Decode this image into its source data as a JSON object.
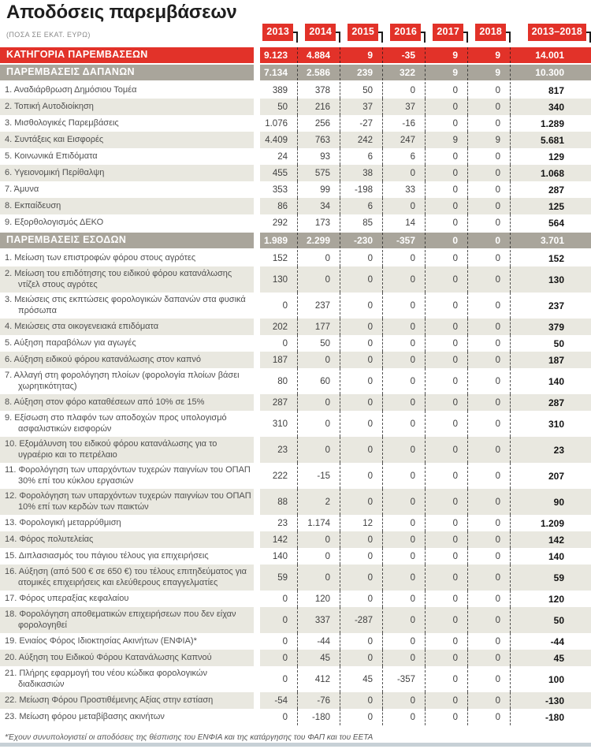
{
  "chart_data": {
    "type": "table",
    "title": "Αποδόσεις παρεμβάσεων",
    "subtitle": "(ΠΟΣΑ ΣΕ ΕΚΑΤ. ΕΥΡΩ)",
    "columns": [
      "2013",
      "2014",
      "2015",
      "2016",
      "2017",
      "2018",
      "2013–2018"
    ],
    "rows": [
      {
        "type": "category",
        "label": "ΚΑΤΗΓΟΡΙΑ ΠΑΡΕΜΒΑΣΕΩΝ",
        "values": [
          "9.123",
          "4.884",
          "9",
          "-35",
          "9",
          "9",
          "14.001"
        ]
      },
      {
        "type": "section",
        "label": "ΠΑΡΕΜΒΑΣΕΙΣ ΔΑΠΑΝΩΝ",
        "values": [
          "7.134",
          "2.586",
          "239",
          "322",
          "9",
          "9",
          "10.300"
        ]
      },
      {
        "type": "item",
        "label": "1. Αναδιάρθρωση Δημόσιου Τομέα",
        "values": [
          "389",
          "378",
          "50",
          "0",
          "0",
          "0",
          "817"
        ]
      },
      {
        "type": "item",
        "label": "2. Τοπική Αυτοδιοίκηση",
        "values": [
          "50",
          "216",
          "37",
          "37",
          "0",
          "0",
          "340"
        ]
      },
      {
        "type": "item",
        "label": "3. Μισθολογικές Παρεμβάσεις",
        "values": [
          "1.076",
          "256",
          "-27",
          "-16",
          "0",
          "0",
          "1.289"
        ]
      },
      {
        "type": "item",
        "label": "4. Συντάξεις και Εισφορές",
        "values": [
          "4.409",
          "763",
          "242",
          "247",
          "9",
          "9",
          "5.681"
        ]
      },
      {
        "type": "item",
        "label": "5. Κοινωνικά Επιδόματα",
        "values": [
          "24",
          "93",
          "6",
          "6",
          "0",
          "0",
          "129"
        ]
      },
      {
        "type": "item",
        "label": "6. Υγειονομική Περίθαλψη",
        "values": [
          "455",
          "575",
          "38",
          "0",
          "0",
          "0",
          "1.068"
        ]
      },
      {
        "type": "item",
        "label": "7. Άμυνα",
        "values": [
          "353",
          "99",
          "-198",
          "33",
          "0",
          "0",
          "287"
        ]
      },
      {
        "type": "item",
        "label": "8. Εκπαίδευση",
        "values": [
          "86",
          "34",
          "6",
          "0",
          "0",
          "0",
          "125"
        ]
      },
      {
        "type": "item",
        "label": "9. Εξορθολογισμός ΔΕΚΟ",
        "values": [
          "292",
          "173",
          "85",
          "14",
          "0",
          "0",
          "564"
        ]
      },
      {
        "type": "section",
        "label": "ΠΑΡΕΜΒΑΣΕΙΣ ΕΣΟΔΩΝ",
        "values": [
          "1.989",
          "2.299",
          "-230",
          "-357",
          "0",
          "0",
          "3.701"
        ]
      },
      {
        "type": "item",
        "label": "1. Μείωση των επιστροφών φόρου στους αγρότες",
        "values": [
          "152",
          "0",
          "0",
          "0",
          "0",
          "0",
          "152"
        ]
      },
      {
        "type": "item",
        "label": "2. Μείωση του επιδότησης του ειδικού φόρου κατανάλωσης ντίζελ στους αγρότες",
        "values": [
          "130",
          "0",
          "0",
          "0",
          "0",
          "0",
          "130"
        ]
      },
      {
        "type": "item",
        "label": "3. Μειώσεις στις εκπτώσεις φορολογικών δαπανών στα φυσικά πρόσωπα",
        "values": [
          "0",
          "237",
          "0",
          "0",
          "0",
          "0",
          "237"
        ]
      },
      {
        "type": "item",
        "label": "4. Μειώσεις στα οικογενειακά επιδόματα",
        "values": [
          "202",
          "177",
          "0",
          "0",
          "0",
          "0",
          "379"
        ]
      },
      {
        "type": "item",
        "label": "5. Αύξηση παραβόλων για αγωγές",
        "values": [
          "0",
          "50",
          "0",
          "0",
          "0",
          "0",
          "50"
        ]
      },
      {
        "type": "item",
        "label": "6. Αύξηση ειδικού φόρου κατανάλωσης στον καπνό",
        "values": [
          "187",
          "0",
          "0",
          "0",
          "0",
          "0",
          "187"
        ]
      },
      {
        "type": "item",
        "label": "7. Αλλαγή στη φορολόγηση πλοίων (φορολογία πλοίων βάσει χωρητικότητας)",
        "values": [
          "80",
          "60",
          "0",
          "0",
          "0",
          "0",
          "140"
        ]
      },
      {
        "type": "item",
        "label": "8. Αύξηση στον φόρο καταθέσεων από 10% σε 15%",
        "values": [
          "287",
          "0",
          "0",
          "0",
          "0",
          "0",
          "287"
        ]
      },
      {
        "type": "item",
        "label": "9. Εξίσωση στο πλαφόν των αποδοχών προς υπολογισμό ασφαλιστικών εισφορών",
        "values": [
          "310",
          "0",
          "0",
          "0",
          "0",
          "0",
          "310"
        ]
      },
      {
        "type": "item",
        "label": "10. Εξομάλυνση του ειδικού φόρου κατανάλωσης για το υγραέριο και το πετρέλαιο",
        "values": [
          "23",
          "0",
          "0",
          "0",
          "0",
          "0",
          "23"
        ]
      },
      {
        "type": "item",
        "label": "11. Φορολόγηση των υπαρχόντων τυχερών παιγνίων του ΟΠΑΠ 30% επί του κύκλου εργασιών",
        "values": [
          "222",
          "-15",
          "0",
          "0",
          "0",
          "0",
          "207"
        ]
      },
      {
        "type": "item",
        "label": "12. Φορολόγηση των υπαρχόντων τυχερών παιγνίων του ΟΠΑΠ 10% επί των κερδών των παικτών",
        "values": [
          "88",
          "2",
          "0",
          "0",
          "0",
          "0",
          "90"
        ]
      },
      {
        "type": "item",
        "label": "13. Φορολογική μεταρρύθμιση",
        "values": [
          "23",
          "1.174",
          "12",
          "0",
          "0",
          "0",
          "1.209"
        ]
      },
      {
        "type": "item",
        "label": "14. Φόρος πολυτελείας",
        "values": [
          "142",
          "0",
          "0",
          "0",
          "0",
          "0",
          "142"
        ]
      },
      {
        "type": "item",
        "label": "15. Διπλασιασμός του πάγιου τέλους για επιχειρήσεις",
        "values": [
          "140",
          "0",
          "0",
          "0",
          "0",
          "0",
          "140"
        ]
      },
      {
        "type": "item",
        "label": "16. Αύξηση (από 500 € σε 650 €) του τέλους επιτηδεύματος για ατομικές επιχειρήσεις και ελεύθερους επαγγελματίες",
        "values": [
          "59",
          "0",
          "0",
          "0",
          "0",
          "0",
          "59"
        ]
      },
      {
        "type": "item",
        "label": "17. Φόρος υπεραξίας κεφαλαίου",
        "values": [
          "0",
          "120",
          "0",
          "0",
          "0",
          "0",
          "120"
        ]
      },
      {
        "type": "item",
        "label": "18. Φορολόγηση αποθεματικών επιχειρήσεων που δεν είχαν φορολογηθεί",
        "values": [
          "0",
          "337",
          "-287",
          "0",
          "0",
          "0",
          "50"
        ]
      },
      {
        "type": "item",
        "label": "19. Ενιαίος Φόρος Ιδιοκτησίας Ακινήτων (ΕΝΦΙΑ)*",
        "values": [
          "0",
          "-44",
          "0",
          "0",
          "0",
          "0",
          "-44"
        ]
      },
      {
        "type": "item",
        "label": "20. Αύξηση του Ειδικού Φόρου Κατανάλωσης Καπνού",
        "values": [
          "0",
          "45",
          "0",
          "0",
          "0",
          "0",
          "45"
        ]
      },
      {
        "type": "item",
        "label": "21. Πλήρης εφαρμογή του νέου κώδικα φορολογικών διαδικασιών",
        "values": [
          "0",
          "412",
          "45",
          "-357",
          "0",
          "0",
          "100"
        ]
      },
      {
        "type": "item",
        "label": "22. Μείωση Φόρου Προστιθέμενης Αξίας στην εστίαση",
        "values": [
          "-54",
          "-76",
          "0",
          "0",
          "0",
          "0",
          "-130"
        ]
      },
      {
        "type": "item",
        "label": "23. Μείωση φόρου μεταβίβασης ακινήτων",
        "values": [
          "0",
          "-180",
          "0",
          "0",
          "0",
          "0",
          "-180"
        ]
      }
    ],
    "footnote": "*Έχουν συνυπολογιστεί οι αποδόσεις της θέσπισης του ΕΝΦΙΑ και της κατάργησης του ΦΑΠ και του ΕΕΤΑ"
  },
  "colors": {
    "accent_red": "#e23229",
    "section_gray": "#a9a59b",
    "stripe_beige": "#e9e8e0",
    "bottom_divider": "#c7d0d6"
  }
}
